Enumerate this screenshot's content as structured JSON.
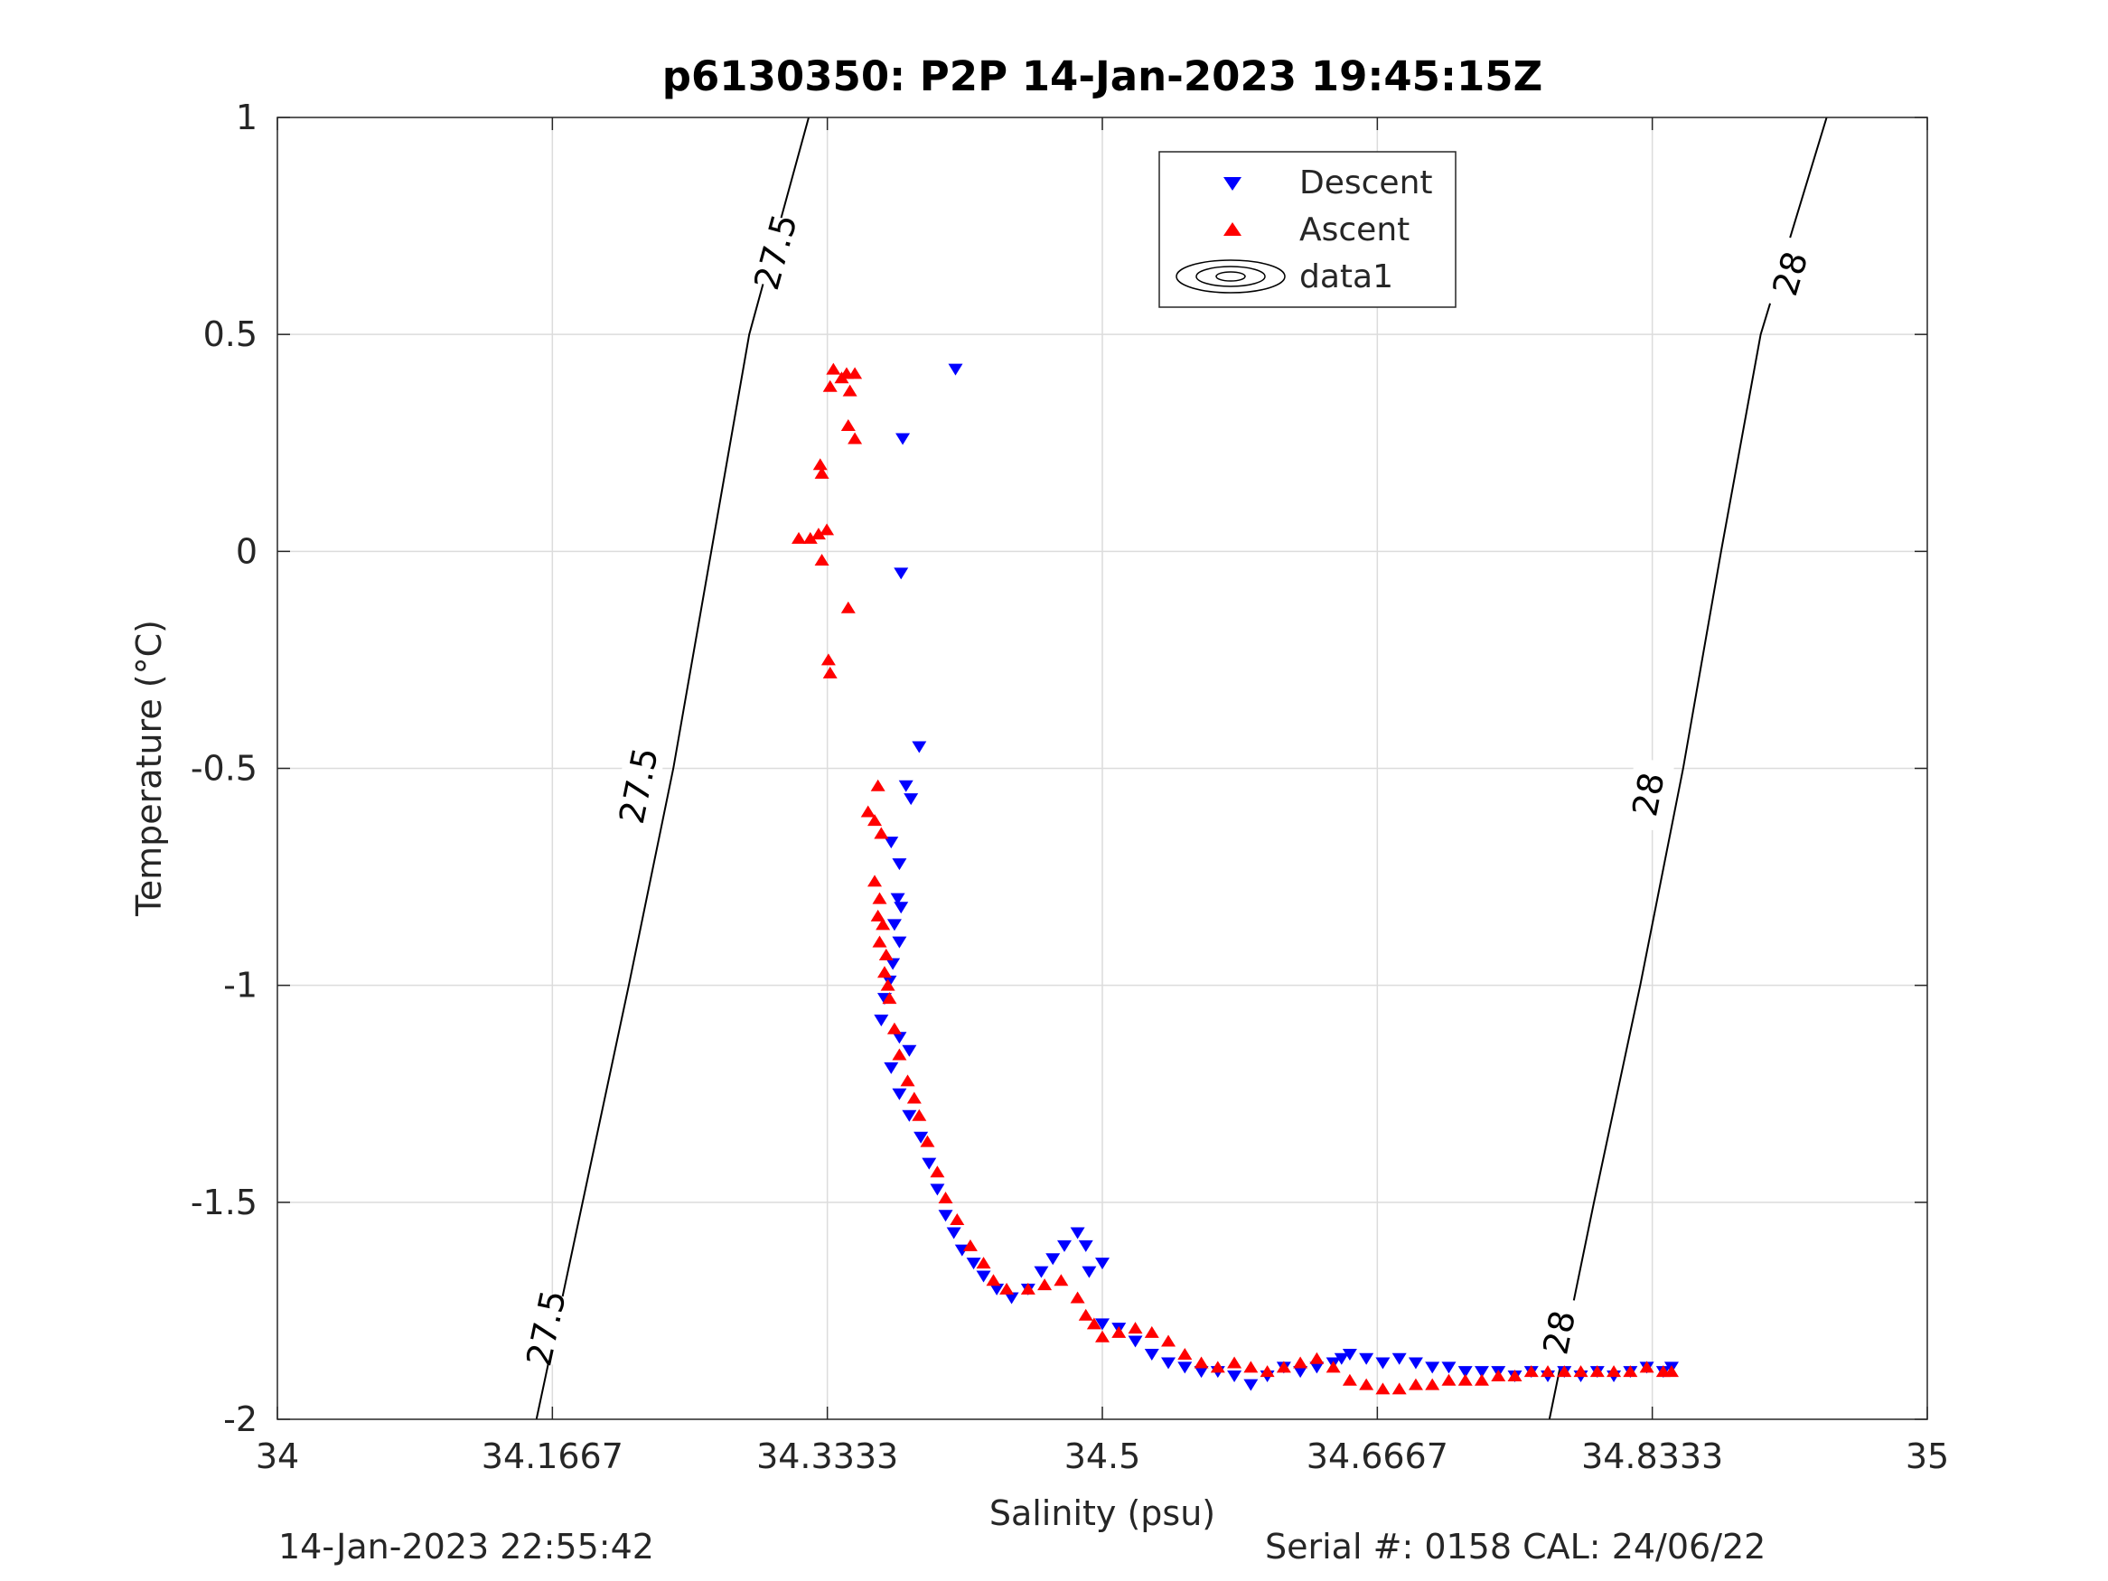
{
  "chart_data": {
    "type": "scatter",
    "title": "p6130350: P2P 14-Jan-2023 19:45:15Z",
    "xlabel": "Salinity (psu)",
    "ylabel": "Temperature (°C)",
    "xlim": [
      34,
      35
    ],
    "ylim": [
      -2,
      1
    ],
    "xticks": [
      "34",
      "34.1667",
      "34.3333",
      "34.5",
      "34.6667",
      "34.8333",
      "35"
    ],
    "xtick_values": [
      34,
      34.16667,
      34.33333,
      34.5,
      34.66667,
      34.83333,
      35
    ],
    "yticks": [
      "1",
      "0.5",
      "0",
      "-0.5",
      "-1",
      "-1.5",
      "-2"
    ],
    "ytick_values": [
      1,
      0.5,
      0,
      -0.5,
      -1,
      -1.5,
      -2
    ],
    "grid": true,
    "legend_position": "top-center",
    "legend": [
      "Descent",
      "Ascent",
      "data1"
    ],
    "series": [
      {
        "name": "Descent",
        "marker": "triangle-down",
        "color": "#0000ff",
        "points": [
          [
            34.411,
            0.42
          ],
          [
            34.379,
            0.26
          ],
          [
            34.378,
            -0.05
          ],
          [
            34.389,
            -0.45
          ],
          [
            34.381,
            -0.54
          ],
          [
            34.384,
            -0.57
          ],
          [
            34.372,
            -0.67
          ],
          [
            34.377,
            -0.72
          ],
          [
            34.376,
            -0.8
          ],
          [
            34.378,
            -0.82
          ],
          [
            34.374,
            -0.86
          ],
          [
            34.377,
            -0.9
          ],
          [
            34.373,
            -0.95
          ],
          [
            34.371,
            -0.99
          ],
          [
            34.368,
            -1.03
          ],
          [
            34.366,
            -1.08
          ],
          [
            34.377,
            -1.12
          ],
          [
            34.383,
            -1.15
          ],
          [
            34.372,
            -1.19
          ],
          [
            34.377,
            -1.25
          ],
          [
            34.383,
            -1.3
          ],
          [
            34.39,
            -1.35
          ],
          [
            34.395,
            -1.41
          ],
          [
            34.4,
            -1.47
          ],
          [
            34.405,
            -1.53
          ],
          [
            34.41,
            -1.57
          ],
          [
            34.415,
            -1.61
          ],
          [
            34.422,
            -1.64
          ],
          [
            34.428,
            -1.67
          ],
          [
            34.436,
            -1.7
          ],
          [
            34.445,
            -1.72
          ],
          [
            34.455,
            -1.7
          ],
          [
            34.463,
            -1.66
          ],
          [
            34.47,
            -1.63
          ],
          [
            34.477,
            -1.6
          ],
          [
            34.485,
            -1.57
          ],
          [
            34.49,
            -1.6
          ],
          [
            34.492,
            -1.66
          ],
          [
            34.5,
            -1.64
          ],
          [
            34.5,
            -1.78
          ],
          [
            34.51,
            -1.79
          ],
          [
            34.52,
            -1.82
          ],
          [
            34.53,
            -1.85
          ],
          [
            34.54,
            -1.87
          ],
          [
            34.55,
            -1.88
          ],
          [
            34.56,
            -1.89
          ],
          [
            34.57,
            -1.89
          ],
          [
            34.58,
            -1.9
          ],
          [
            34.59,
            -1.92
          ],
          [
            34.6,
            -1.9
          ],
          [
            34.61,
            -1.88
          ],
          [
            34.62,
            -1.89
          ],
          [
            34.63,
            -1.88
          ],
          [
            34.64,
            -1.87
          ],
          [
            34.645,
            -1.86
          ],
          [
            34.65,
            -1.85
          ],
          [
            34.66,
            -1.86
          ],
          [
            34.67,
            -1.87
          ],
          [
            34.68,
            -1.86
          ],
          [
            34.69,
            -1.87
          ],
          [
            34.7,
            -1.88
          ],
          [
            34.71,
            -1.88
          ],
          [
            34.72,
            -1.89
          ],
          [
            34.73,
            -1.89
          ],
          [
            34.74,
            -1.89
          ],
          [
            34.75,
            -1.9
          ],
          [
            34.76,
            -1.89
          ],
          [
            34.77,
            -1.9
          ],
          [
            34.78,
            -1.89
          ],
          [
            34.79,
            -1.9
          ],
          [
            34.8,
            -1.89
          ],
          [
            34.81,
            -1.9
          ],
          [
            34.82,
            -1.89
          ],
          [
            34.83,
            -1.88
          ],
          [
            34.84,
            -1.89
          ],
          [
            34.845,
            -1.88
          ]
        ]
      },
      {
        "name": "Ascent",
        "marker": "triangle-up",
        "color": "#ff0000",
        "points": [
          [
            34.337,
            0.42
          ],
          [
            34.345,
            0.41
          ],
          [
            34.35,
            0.41
          ],
          [
            34.342,
            0.4
          ],
          [
            34.335,
            0.38
          ],
          [
            34.347,
            0.37
          ],
          [
            34.346,
            0.29
          ],
          [
            34.35,
            0.26
          ],
          [
            34.329,
            0.2
          ],
          [
            34.33,
            0.18
          ],
          [
            34.333,
            0.05
          ],
          [
            34.316,
            0.03
          ],
          [
            34.323,
            0.03
          ],
          [
            34.328,
            0.04
          ],
          [
            34.33,
            -0.02
          ],
          [
            34.346,
            -0.13
          ],
          [
            34.334,
            -0.25
          ],
          [
            34.335,
            -0.28
          ],
          [
            34.364,
            -0.54
          ],
          [
            34.358,
            -0.6
          ],
          [
            34.362,
            -0.62
          ],
          [
            34.366,
            -0.65
          ],
          [
            34.362,
            -0.76
          ],
          [
            34.365,
            -0.8
          ],
          [
            34.364,
            -0.84
          ],
          [
            34.367,
            -0.86
          ],
          [
            34.365,
            -0.9
          ],
          [
            34.369,
            -0.93
          ],
          [
            34.368,
            -0.97
          ],
          [
            34.37,
            -1.0
          ],
          [
            34.371,
            -1.03
          ],
          [
            34.374,
            -1.1
          ],
          [
            34.377,
            -1.16
          ],
          [
            34.382,
            -1.22
          ],
          [
            34.386,
            -1.26
          ],
          [
            34.389,
            -1.3
          ],
          [
            34.394,
            -1.36
          ],
          [
            34.4,
            -1.43
          ],
          [
            34.405,
            -1.49
          ],
          [
            34.412,
            -1.54
          ],
          [
            34.42,
            -1.6
          ],
          [
            34.428,
            -1.64
          ],
          [
            34.434,
            -1.68
          ],
          [
            34.442,
            -1.7
          ],
          [
            34.455,
            -1.7
          ],
          [
            34.465,
            -1.69
          ],
          [
            34.475,
            -1.68
          ],
          [
            34.485,
            -1.72
          ],
          [
            34.49,
            -1.76
          ],
          [
            34.495,
            -1.78
          ],
          [
            34.5,
            -1.81
          ],
          [
            34.51,
            -1.8
          ],
          [
            34.52,
            -1.79
          ],
          [
            34.53,
            -1.8
          ],
          [
            34.54,
            -1.82
          ],
          [
            34.55,
            -1.85
          ],
          [
            34.56,
            -1.87
          ],
          [
            34.57,
            -1.88
          ],
          [
            34.58,
            -1.87
          ],
          [
            34.59,
            -1.88
          ],
          [
            34.6,
            -1.89
          ],
          [
            34.61,
            -1.88
          ],
          [
            34.62,
            -1.87
          ],
          [
            34.63,
            -1.86
          ],
          [
            34.64,
            -1.88
          ],
          [
            34.65,
            -1.91
          ],
          [
            34.66,
            -1.92
          ],
          [
            34.67,
            -1.93
          ],
          [
            34.68,
            -1.93
          ],
          [
            34.69,
            -1.92
          ],
          [
            34.7,
            -1.92
          ],
          [
            34.71,
            -1.91
          ],
          [
            34.72,
            -1.91
          ],
          [
            34.73,
            -1.91
          ],
          [
            34.74,
            -1.9
          ],
          [
            34.75,
            -1.9
          ],
          [
            34.76,
            -1.89
          ],
          [
            34.77,
            -1.89
          ],
          [
            34.78,
            -1.89
          ],
          [
            34.79,
            -1.89
          ],
          [
            34.8,
            -1.89
          ],
          [
            34.81,
            -1.89
          ],
          [
            34.82,
            -1.89
          ],
          [
            34.83,
            -1.88
          ],
          [
            34.84,
            -1.89
          ],
          [
            34.845,
            -1.89
          ]
        ]
      }
    ],
    "contours": [
      {
        "level": "27.5",
        "points": [
          [
            34.157,
            -2.0
          ],
          [
            34.185,
            -1.5
          ],
          [
            34.213,
            -1.0
          ],
          [
            34.24,
            -0.5
          ],
          [
            34.263,
            0.0
          ],
          [
            34.286,
            0.5
          ],
          [
            34.322,
            1.0
          ]
        ],
        "labels": [
          [
            34.163,
            -1.79
          ],
          [
            34.219,
            -0.54
          ],
          [
            34.302,
            0.69
          ]
        ]
      },
      {
        "level": "28",
        "points": [
          [
            34.771,
            -2.0
          ],
          [
            34.798,
            -1.5
          ],
          [
            34.826,
            -1.0
          ],
          [
            34.852,
            -0.5
          ],
          [
            34.875,
            0.0
          ],
          [
            34.899,
            0.5
          ],
          [
            34.939,
            1.0
          ]
        ],
        "labels": [
          [
            34.777,
            -1.8
          ],
          [
            34.831,
            -0.56
          ],
          [
            34.917,
            0.64
          ]
        ]
      }
    ],
    "footer_left": "14-Jan-2023 22:55:42",
    "footer_right": "Serial #: 0158  CAL: 24/06/22"
  }
}
